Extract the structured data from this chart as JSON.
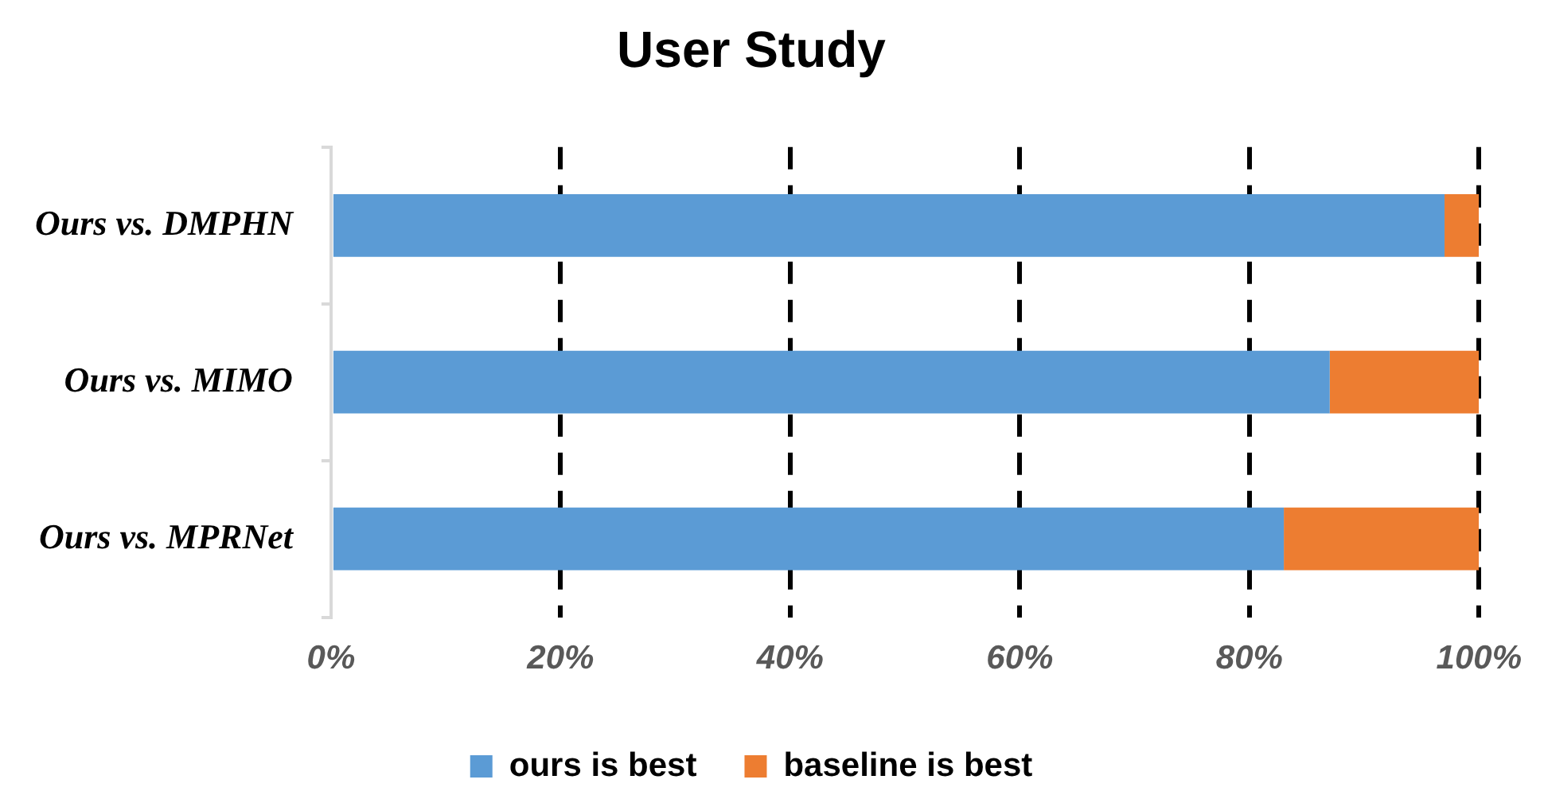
{
  "chart_data": {
    "type": "bar",
    "title": "User Study",
    "orientation": "horizontal",
    "stacked": true,
    "categories": [
      "Ours vs. DMPHN",
      "Ours vs. MIMO",
      "Ours vs. MPRNet"
    ],
    "series": [
      {
        "name": "ours is best",
        "color": "#5b9bd5",
        "values": [
          97,
          87,
          83
        ]
      },
      {
        "name": "baseline is best",
        "color": "#ed7d31",
        "values": [
          3,
          13,
          17
        ]
      }
    ],
    "xlim": [
      0,
      100
    ],
    "xticks": [
      {
        "value": 0,
        "label": "0%"
      },
      {
        "value": 20,
        "label": "20%"
      },
      {
        "value": 40,
        "label": "40%"
      },
      {
        "value": 60,
        "label": "60%"
      },
      {
        "value": 80,
        "label": "80%"
      },
      {
        "value": 100,
        "label": "100%"
      }
    ],
    "grid": "x",
    "line_style": "dashed",
    "legend": "bottom"
  }
}
